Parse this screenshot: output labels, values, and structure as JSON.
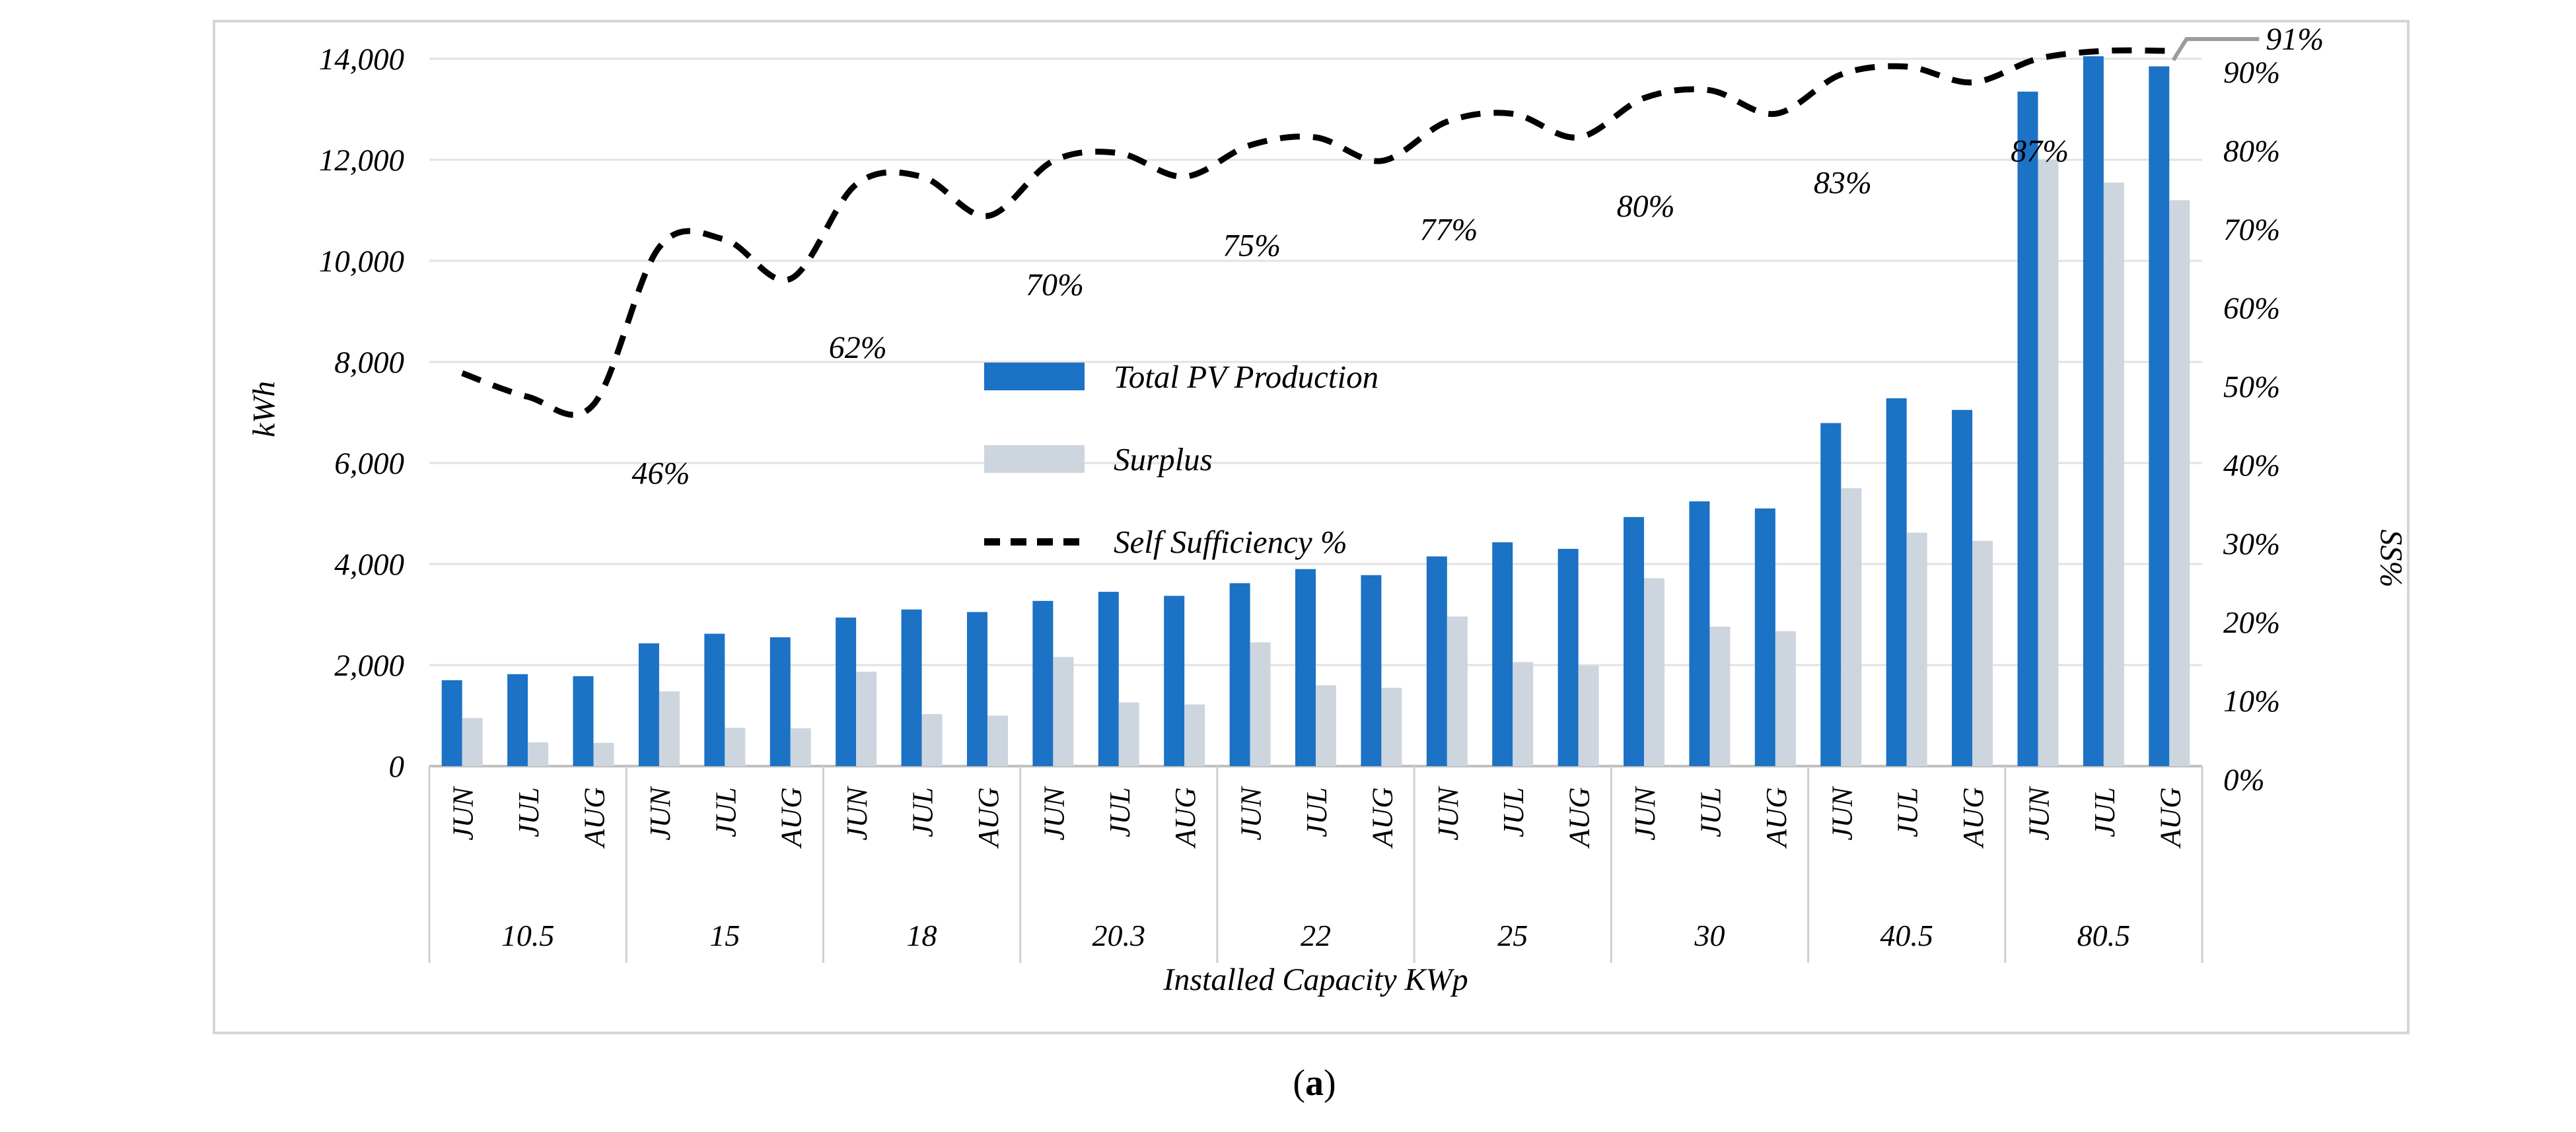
{
  "chart_data": {
    "type": "combo-bar-line",
    "title": "",
    "y_left": {
      "label": "kWh",
      "min": 0,
      "max": 14000,
      "step": 2000,
      "tick_labels": [
        "0",
        "2,000",
        "4,000",
        "6,000",
        "8,000",
        "10,000",
        "12,000",
        "14,000"
      ]
    },
    "y_right": {
      "label": "SS%",
      "min": 0,
      "max": 90,
      "step": 10,
      "tick_labels": [
        "0%",
        "10%",
        "20%",
        "30%",
        "40%",
        "50%",
        "60%",
        "70%",
        "80%",
        "90%"
      ]
    },
    "x": {
      "label": "Installed Capacity KWp",
      "groups": [
        "10.5",
        "15",
        "18",
        "20.3",
        "22",
        "25",
        "30",
        "40.5",
        "80.5"
      ],
      "months": [
        "JUN",
        "JUL",
        "AUG"
      ]
    },
    "grid": true,
    "legend_position": "inside-center-left",
    "series": [
      {
        "name": "Total PV Production",
        "type": "bar",
        "color": "#1c72c5",
        "values": [
          1700,
          1820,
          1780,
          2430,
          2620,
          2550,
          2940,
          3100,
          3050,
          3270,
          3450,
          3370,
          3620,
          3900,
          3780,
          4150,
          4430,
          4300,
          4930,
          5240,
          5100,
          6790,
          7280,
          7050,
          13350,
          14050,
          13850
        ]
      },
      {
        "name": "Surplus",
        "type": "bar",
        "color": "#cdd5df",
        "values": [
          950,
          470,
          460,
          1480,
          760,
          750,
          1870,
          1030,
          1000,
          2160,
          1260,
          1220,
          2450,
          1600,
          1550,
          2960,
          2060,
          1990,
          3720,
          2760,
          2670,
          5500,
          4620,
          4460,
          12000,
          11550,
          11200
        ]
      },
      {
        "name": "Self Sufficiency %",
        "type": "line",
        "color": "#000000",
        "dashed": true,
        "values": [
          50,
          47,
          46,
          66,
          67,
          62,
          74,
          75,
          70,
          77,
          78,
          75,
          79,
          80,
          77,
          82,
          83,
          80,
          85,
          86,
          83,
          88,
          89,
          87,
          90,
          91,
          91
        ],
        "point_labels": [
          {
            "index": 2,
            "text": "46%"
          },
          {
            "index": 5,
            "text": "62%"
          },
          {
            "index": 8,
            "text": "70%"
          },
          {
            "index": 11,
            "text": "75%"
          },
          {
            "index": 14,
            "text": "77%"
          },
          {
            "index": 17,
            "text": "80%"
          },
          {
            "index": 20,
            "text": "83%"
          },
          {
            "index": 23,
            "text": "87%"
          },
          {
            "index": 26,
            "text": "91%",
            "leader": true
          }
        ]
      }
    ]
  },
  "caption": {
    "open": "(",
    "letter": "a",
    "close": ")"
  }
}
